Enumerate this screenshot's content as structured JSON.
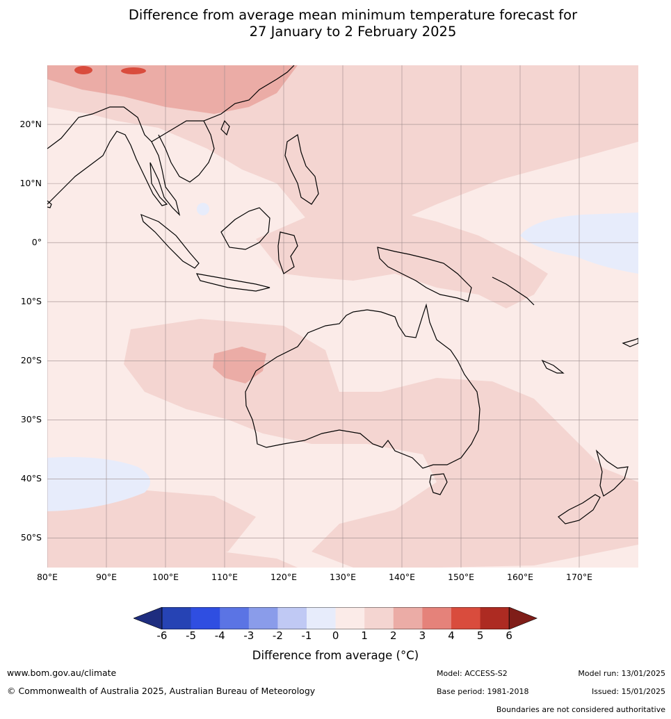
{
  "title": {
    "line1": "Difference from average mean minimum temperature forecast for",
    "line2": "27 January to 2 February 2025"
  },
  "map": {
    "lat_labels": [
      "20°N",
      "10°N",
      "0°",
      "10°S",
      "20°S",
      "30°S",
      "40°S",
      "50°S"
    ],
    "lon_labels": [
      "80°E",
      "90°E",
      "100°E",
      "110°E",
      "120°E",
      "130°E",
      "140°E",
      "150°E",
      "160°E",
      "170°E"
    ],
    "extent": {
      "lon": [
        80,
        180
      ],
      "lat": [
        -55,
        30
      ]
    },
    "region_tint_colors": {
      "plus_0_1": "#fbebe8",
      "plus_1_2": "#f4d5d1",
      "plus_2_3": "#ebaca6",
      "plus_4_5": "#d94c3d",
      "minus_1_0": "#e7ecfb"
    }
  },
  "colorbar": {
    "ticks": [
      "-6",
      "-5",
      "-4",
      "-3",
      "-2",
      "-1",
      "0",
      "1",
      "2",
      "3",
      "4",
      "5",
      "6"
    ],
    "colors": [
      "#1e2d7f",
      "#2643b4",
      "#2f4ee1",
      "#5b74e4",
      "#8a9cea",
      "#c0c9f4",
      "#e7ecfb",
      "#fbebe8",
      "#f4d5d1",
      "#ebaca6",
      "#e5827a",
      "#d94c3d",
      "#ad2b22",
      "#7f1d18"
    ],
    "label": "Difference from average (°C)"
  },
  "footer": {
    "website": "www.bom.gov.au/climate",
    "copyright": "© Commonwealth of Australia 2025, Australian Bureau of Meteorology",
    "model": "Model: ACCESS-S2",
    "base_period": "Base period: 1981-2018",
    "model_run": "Model run: 13/01/2025",
    "issued": "Issued: 15/01/2025",
    "disclaimer": "Boundaries are not considered authoritative"
  }
}
